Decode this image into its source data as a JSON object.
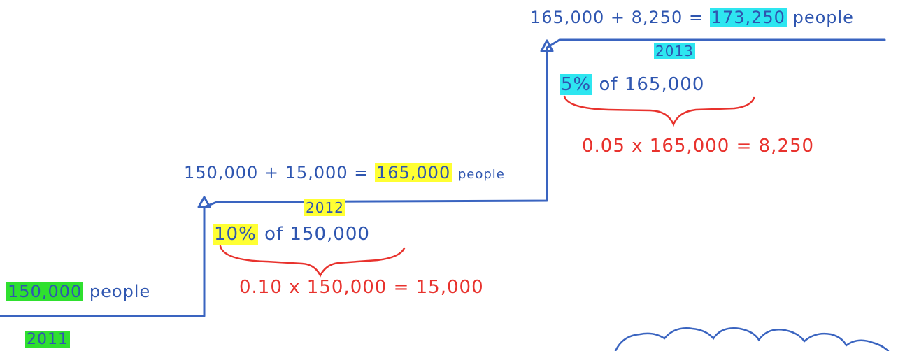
{
  "colors": {
    "line": "#3a64c0",
    "text_blue": "#2f56b0",
    "text_red": "#e8322d",
    "highlight_green": "#2fe02f",
    "highlight_yellow": "#ffff33",
    "highlight_cyan": "#2ee6f0"
  },
  "step_2011": {
    "amount": "150,000",
    "unit": "people",
    "year": "2011"
  },
  "step_2012": {
    "eq_prefix": "150,000 + 15,000 =",
    "amount": "165,000",
    "unit": "people",
    "year": "2012",
    "rate": "10%",
    "rate_text": "of 150,000",
    "calc": "0.10 x 150,000 = 15,000"
  },
  "step_2013": {
    "eq_prefix": "165,000 + 8,250 =",
    "amount": "173,250",
    "unit": "people",
    "year": "2013",
    "rate": "5%",
    "rate_text": "of 165,000",
    "calc": "0.05 x 165,000 = 8,250"
  }
}
